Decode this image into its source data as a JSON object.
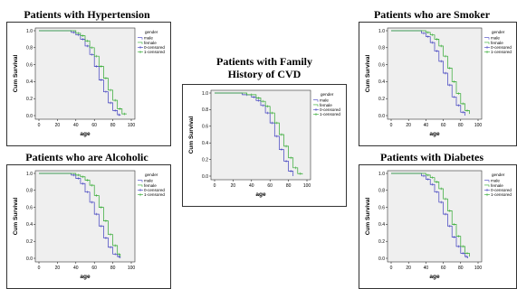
{
  "legend": {
    "title": "gender",
    "entries": [
      {
        "label": "male",
        "color": "#3f3fbf",
        "marker": "line"
      },
      {
        "label": "female",
        "color": "#2fa82f",
        "marker": "line"
      },
      {
        "label": "0-censored",
        "color": "#3f3fbf",
        "marker": "plus"
      },
      {
        "label": "1-censored",
        "color": "#2fa82f",
        "marker": "plus"
      }
    ]
  },
  "colors": {
    "male": "#3f3fbf",
    "female": "#2fa82f",
    "plot_bg": "#efefef"
  },
  "chart_data": [
    {
      "type": "line",
      "title": "Patients with Hypertension",
      "xlabel": "age",
      "ylabel": "Cum Survival",
      "xlim": [
        0,
        100
      ],
      "ylim": [
        0,
        1.0
      ],
      "xticks": [
        0,
        20,
        40,
        60,
        80,
        100
      ],
      "yticks": [
        0.0,
        0.2,
        0.4,
        0.6,
        0.8,
        1.0
      ],
      "grid": false,
      "legend_position": "right",
      "series": [
        {
          "name": "male",
          "x": [
            0,
            25,
            35,
            40,
            45,
            50,
            55,
            60,
            65,
            70,
            75,
            80,
            85,
            88
          ],
          "y": [
            1.0,
            1.0,
            0.98,
            0.95,
            0.9,
            0.82,
            0.72,
            0.58,
            0.42,
            0.28,
            0.15,
            0.06,
            0.01,
            0.0
          ]
        },
        {
          "name": "female",
          "x": [
            0,
            30,
            40,
            45,
            50,
            55,
            60,
            65,
            70,
            75,
            80,
            85,
            90,
            95
          ],
          "y": [
            1.0,
            1.0,
            0.97,
            0.94,
            0.88,
            0.8,
            0.7,
            0.58,
            0.44,
            0.3,
            0.18,
            0.08,
            0.02,
            0.02
          ]
        }
      ]
    },
    {
      "type": "line",
      "title": "Patients with Family History of CVD",
      "title_lines": [
        "Patients with Family",
        "History of CVD"
      ],
      "xlabel": "age",
      "ylabel": "Cum Survival",
      "xlim": [
        0,
        100
      ],
      "ylim": [
        0,
        1.0
      ],
      "xticks": [
        0,
        20,
        40,
        60,
        80,
        100
      ],
      "yticks": [
        0.0,
        0.2,
        0.4,
        0.6,
        0.8,
        1.0
      ],
      "grid": false,
      "legend_position": "right",
      "series": [
        {
          "name": "male",
          "x": [
            0,
            20,
            30,
            40,
            45,
            50,
            55,
            60,
            65,
            70,
            75,
            80,
            85
          ],
          "y": [
            1.0,
            1.0,
            0.98,
            0.95,
            0.91,
            0.85,
            0.76,
            0.64,
            0.48,
            0.32,
            0.18,
            0.06,
            0.0
          ]
        },
        {
          "name": "female",
          "x": [
            0,
            25,
            35,
            45,
            50,
            55,
            60,
            65,
            70,
            75,
            80,
            85,
            90,
            95
          ],
          "y": [
            1.0,
            1.0,
            0.98,
            0.94,
            0.9,
            0.84,
            0.76,
            0.64,
            0.5,
            0.36,
            0.22,
            0.1,
            0.03,
            0.02
          ]
        }
      ]
    },
    {
      "type": "line",
      "title": "Patients who are Smoker",
      "xlabel": "age",
      "ylabel": "Cum Survival",
      "xlim": [
        0,
        100
      ],
      "ylim": [
        0,
        1.0
      ],
      "xticks": [
        0,
        20,
        40,
        60,
        80,
        100
      ],
      "yticks": [
        0.0,
        0.2,
        0.4,
        0.6,
        0.8,
        1.0
      ],
      "grid": false,
      "legend_position": "right",
      "series": [
        {
          "name": "male",
          "x": [
            0,
            25,
            35,
            40,
            45,
            50,
            55,
            60,
            65,
            70,
            75,
            80,
            85
          ],
          "y": [
            1.0,
            1.0,
            0.97,
            0.93,
            0.86,
            0.76,
            0.64,
            0.5,
            0.36,
            0.22,
            0.12,
            0.04,
            0.0
          ]
        },
        {
          "name": "female",
          "x": [
            0,
            30,
            40,
            45,
            50,
            55,
            60,
            65,
            70,
            75,
            80,
            85,
            90
          ],
          "y": [
            1.0,
            1.0,
            0.98,
            0.95,
            0.9,
            0.82,
            0.7,
            0.56,
            0.4,
            0.26,
            0.14,
            0.06,
            0.02
          ]
        }
      ]
    },
    {
      "type": "line",
      "title": "Patients who are Alcoholic",
      "xlabel": "age",
      "ylabel": "Cum Survival",
      "xlim": [
        0,
        100
      ],
      "ylim": [
        0,
        1.0
      ],
      "xticks": [
        0,
        20,
        40,
        60,
        80,
        100
      ],
      "yticks": [
        0.0,
        0.2,
        0.4,
        0.6,
        0.8,
        1.0
      ],
      "grid": false,
      "legend_position": "right",
      "series": [
        {
          "name": "male",
          "x": [
            0,
            25,
            35,
            40,
            45,
            50,
            55,
            60,
            65,
            70,
            75,
            80,
            85,
            88
          ],
          "y": [
            1.0,
            1.0,
            0.98,
            0.94,
            0.88,
            0.78,
            0.66,
            0.52,
            0.38,
            0.24,
            0.13,
            0.05,
            0.02,
            0.0
          ]
        },
        {
          "name": "female",
          "x": [
            0,
            30,
            40,
            45,
            50,
            55,
            60,
            65,
            70,
            75,
            80,
            85,
            88
          ],
          "y": [
            1.0,
            1.0,
            0.98,
            0.96,
            0.92,
            0.86,
            0.74,
            0.6,
            0.44,
            0.28,
            0.15,
            0.05,
            0.02
          ]
        }
      ]
    },
    {
      "type": "line",
      "title": "Patients with Diabetes",
      "xlabel": "age",
      "ylabel": "Cum Survival",
      "xlim": [
        0,
        100
      ],
      "ylim": [
        0,
        1.0
      ],
      "xticks": [
        0,
        20,
        40,
        60,
        80,
        100
      ],
      "yticks": [
        0.0,
        0.2,
        0.4,
        0.6,
        0.8,
        1.0
      ],
      "grid": false,
      "legend_position": "right",
      "series": [
        {
          "name": "male",
          "x": [
            0,
            25,
            35,
            40,
            45,
            50,
            55,
            60,
            65,
            70,
            75,
            80,
            85,
            88
          ],
          "y": [
            1.0,
            1.0,
            0.97,
            0.93,
            0.87,
            0.78,
            0.66,
            0.52,
            0.38,
            0.25,
            0.14,
            0.06,
            0.02,
            0.0
          ]
        },
        {
          "name": "female",
          "x": [
            0,
            30,
            40,
            45,
            50,
            55,
            60,
            65,
            70,
            75,
            80,
            85,
            90
          ],
          "y": [
            1.0,
            1.0,
            0.98,
            0.95,
            0.9,
            0.82,
            0.7,
            0.56,
            0.4,
            0.26,
            0.14,
            0.06,
            0.02
          ]
        }
      ]
    }
  ]
}
